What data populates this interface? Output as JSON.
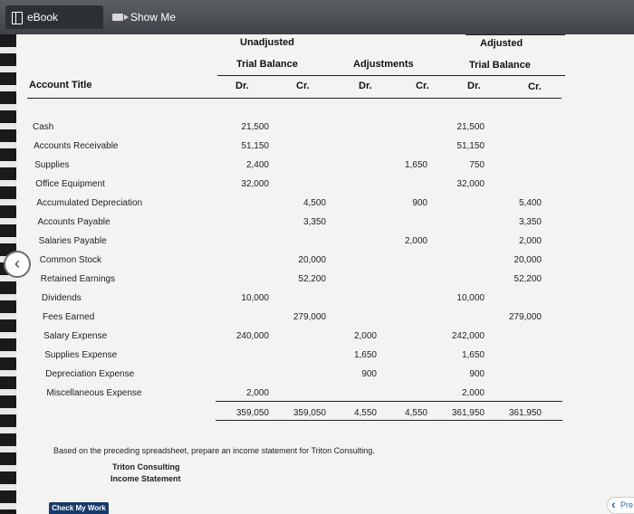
{
  "tabs": {
    "ebook": "eBook",
    "show_me": "Show Me How"
  },
  "headers": {
    "unadjusted": "Unadjusted",
    "trial_balance": "Trial Balance",
    "adjustments": "Adjustments",
    "adjusted": "Adjusted",
    "adj_trial_balance": "Trial Balance",
    "account_title": "Account Title",
    "dr": "Dr.",
    "cr": "Cr."
  },
  "rows": [
    {
      "title": "Cash",
      "ud": "21,500",
      "uc": "",
      "ad": "",
      "ac": "",
      "jd": "21,500",
      "jc": ""
    },
    {
      "title": "Accounts Receivable",
      "ud": "51,150",
      "uc": "",
      "ad": "",
      "ac": "",
      "jd": "51,150",
      "jc": ""
    },
    {
      "title": "Supplies",
      "ud": "2,400",
      "uc": "",
      "ad": "",
      "ac": "1,650",
      "jd": "750",
      "jc": ""
    },
    {
      "title": "Office Equipment",
      "ud": "32,000",
      "uc": "",
      "ad": "",
      "ac": "",
      "jd": "32,000",
      "jc": ""
    },
    {
      "title": "Accumulated Depreciation",
      "ud": "",
      "uc": "4,500",
      "ad": "",
      "ac": "900",
      "jd": "",
      "jc": "5,400"
    },
    {
      "title": "Accounts Payable",
      "ud": "",
      "uc": "3,350",
      "ad": "",
      "ac": "",
      "jd": "",
      "jc": "3,350"
    },
    {
      "title": "Salaries Payable",
      "ud": "",
      "uc": "",
      "ad": "",
      "ac": "2,000",
      "jd": "",
      "jc": "2,000"
    },
    {
      "title": "Common Stock",
      "ud": "",
      "uc": "20,000",
      "ad": "",
      "ac": "",
      "jd": "",
      "jc": "20,000"
    },
    {
      "title": "Retained Earnings",
      "ud": "",
      "uc": "52,200",
      "ad": "",
      "ac": "",
      "jd": "",
      "jc": "52,200"
    },
    {
      "title": "Dividends",
      "ud": "10,000",
      "uc": "",
      "ad": "",
      "ac": "",
      "jd": "10,000",
      "jc": ""
    },
    {
      "title": "Fees Earned",
      "ud": "",
      "uc": "279,000",
      "ad": "",
      "ac": "",
      "jd": "",
      "jc": "279,000"
    },
    {
      "title": "Salary Expense",
      "ud": "240,000",
      "uc": "",
      "ad": "2,000",
      "ac": "",
      "jd": "242,000",
      "jc": ""
    },
    {
      "title": "Supplies Expense",
      "ud": "",
      "uc": "",
      "ad": "1,650",
      "ac": "",
      "jd": "1,650",
      "jc": ""
    },
    {
      "title": "Depreciation Expense",
      "ud": "",
      "uc": "",
      "ad": "900",
      "ac": "",
      "jd": "900",
      "jc": ""
    },
    {
      "title": "Miscellaneous Expense",
      "ud": "2,000",
      "uc": "",
      "ad": "",
      "ac": "",
      "jd": "2,000",
      "jc": ""
    }
  ],
  "totals": {
    "ud": "359,050",
    "uc": "359,050",
    "ad": "4,550",
    "ac": "4,550",
    "jd": "361,950",
    "jc": "361,950"
  },
  "instruction": "Based on the preceding spreadsheet, prepare an income statement for Triton Consulting.",
  "statement": {
    "company": "Triton Consulting",
    "title": "Income Statement"
  },
  "buttons": {
    "check": "Check My Work",
    "prev": "Pre",
    "back_icon": "chevron-left-icon"
  }
}
